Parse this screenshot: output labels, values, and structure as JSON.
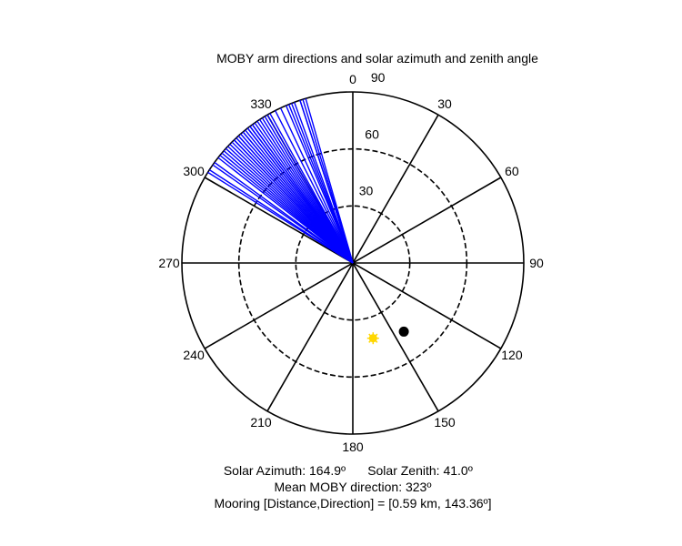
{
  "chart_data": {
    "type": "polar",
    "title": "MOBY arm directions and solar azimuth and zenith angle",
    "azimuth_tick_labels": [
      "0",
      "30",
      "60",
      "90",
      "120",
      "150",
      "180",
      "210",
      "240",
      "270",
      "300",
      "330"
    ],
    "radial_tick_labels": [
      "30",
      "60",
      "90"
    ],
    "radial_range": [
      0,
      90
    ],
    "grid": true,
    "angle_convention": "clockwise-from-north",
    "arm_directions_deg": [
      302,
      303,
      305,
      306,
      308,
      309,
      310,
      311,
      312,
      313,
      314,
      315,
      316,
      316,
      317,
      318,
      318,
      319,
      320,
      320,
      321,
      322,
      322,
      323,
      323,
      324,
      324,
      325,
      326,
      327,
      328,
      329,
      330,
      331,
      333,
      335,
      337,
      338,
      339,
      340,
      342,
      342,
      343,
      344
    ],
    "arm_color": "#0000ff",
    "solar_point": {
      "azimuth_deg": 164.9,
      "zenith_deg": 41.0,
      "color": "#ffd700"
    },
    "mooring_point": {
      "azimuth_deg": 143.36,
      "zenith_deg": 45,
      "color": "#000000"
    },
    "annotations": {
      "line1_part1": "Solar Azimuth: 164.9º",
      "line1_part2": "Solar Zenith: 41.0º",
      "line2": "Mean MOBY direction: 323º",
      "line3": "Mooring [Distance,Direction] = [0.59 km, 143.36º]"
    }
  }
}
